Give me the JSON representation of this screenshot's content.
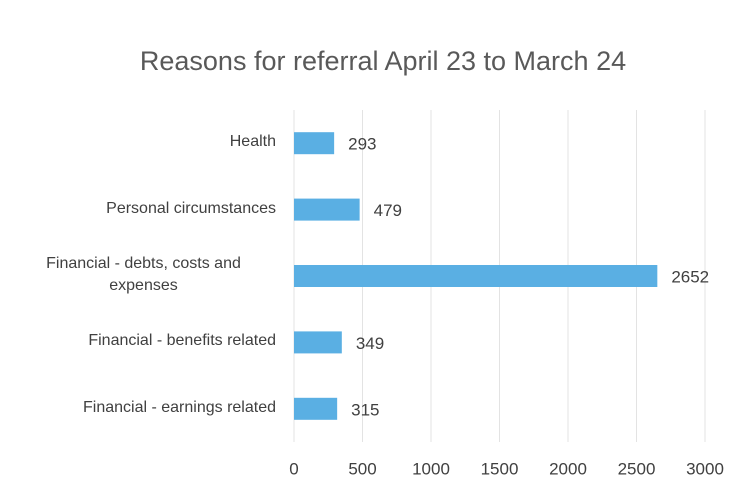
{
  "chart_data": {
    "type": "bar",
    "orientation": "horizontal",
    "title": "Reasons for referral April 23 to March 24",
    "categories": [
      "Health",
      "Personal circumstances",
      "Financial - debts, costs and expenses",
      "Financial - benefits related",
      "Financial - earnings related"
    ],
    "values": [
      293,
      479,
      2652,
      349,
      315
    ],
    "color": "#5aafe3",
    "xlim": [
      0,
      3000
    ],
    "xticks": [
      0,
      500,
      1000,
      1500,
      2000,
      2500,
      3000
    ],
    "grid": true
  }
}
